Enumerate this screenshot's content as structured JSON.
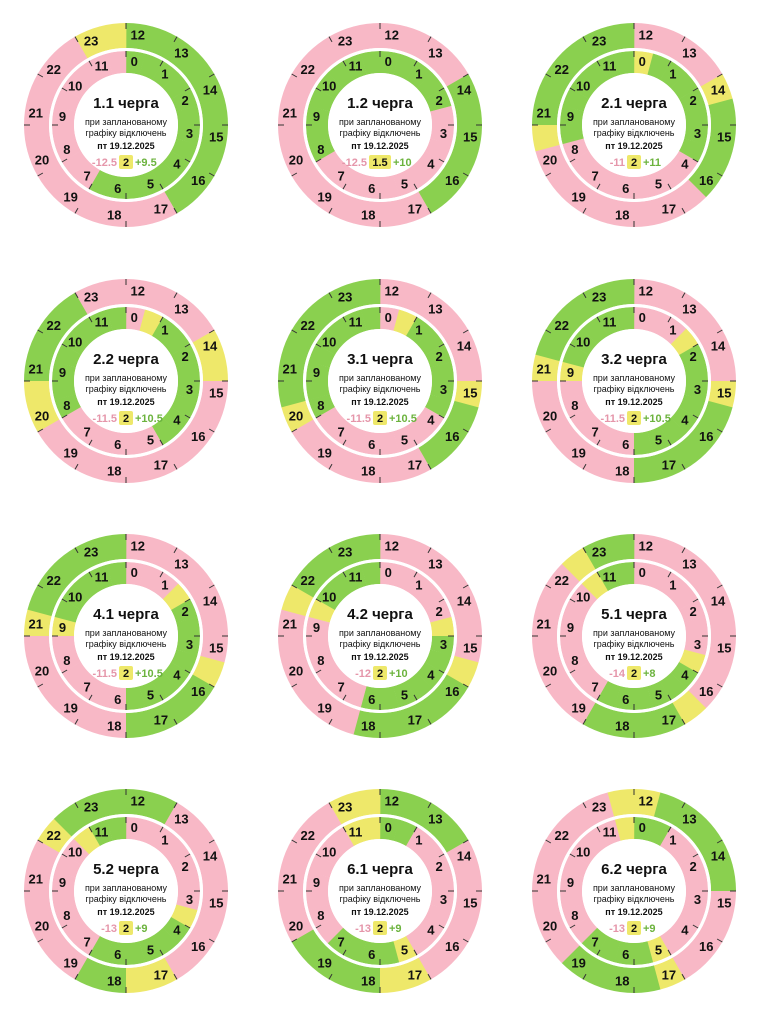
{
  "page": {
    "subtitle_line1": "при запланованому",
    "subtitle_line2": "графіку відключень",
    "date": "пт 19.12.2025"
  },
  "legend_colors": {
    "on": "#8ad04f",
    "off": "#f8b8c6",
    "maybe": "#eee86a"
  },
  "chart_data": {
    "type": "radial-schedule",
    "note_states": "on = power on (green), off = outage (pink), maybe = possible (yellow); outer ring = hours 12-23, inner ring = hours 0-11, two half-hour slots per hour",
    "queues": [
      {
        "title": "1.1 черга",
        "minus": "-12.5",
        "mid": "2",
        "plus": "+9.5",
        "inner": [
          "on",
          "on",
          "on",
          "on",
          "on",
          "on",
          "on",
          "on",
          "on",
          "on",
          "on",
          "on",
          "on",
          "on",
          "off",
          "off",
          "off",
          "off",
          "off",
          "off",
          "off",
          "off",
          "off",
          "off"
        ],
        "outer": [
          "on",
          "on",
          "on",
          "on",
          "on",
          "on",
          "on",
          "on",
          "on",
          "on",
          "off",
          "off",
          "off",
          "off",
          "off",
          "off",
          "off",
          "off",
          "off",
          "off",
          "off",
          "off",
          "maybe",
          "maybe"
        ]
      },
      {
        "title": "1.2 черга",
        "minus": "-12.5",
        "mid": "1.5",
        "plus": "+10",
        "inner": [
          "on",
          "on",
          "on",
          "on",
          "on",
          "off",
          "off",
          "off",
          "off",
          "off",
          "off",
          "off",
          "off",
          "off",
          "off",
          "off",
          "on",
          "on",
          "on",
          "on",
          "on",
          "on",
          "on",
          "on"
        ],
        "outer": [
          "off",
          "off",
          "off",
          "off",
          "on",
          "on",
          "on",
          "on",
          "on",
          "on",
          "off",
          "off",
          "off",
          "off",
          "off",
          "off",
          "off",
          "off",
          "off",
          "off",
          "off",
          "off",
          "off",
          "off"
        ]
      },
      {
        "title": "2.1 черга",
        "minus": "-11",
        "mid": "2",
        "plus": "+11",
        "inner": [
          "maybe",
          "on",
          "on",
          "on",
          "on",
          "on",
          "on",
          "on",
          "off",
          "off",
          "off",
          "off",
          "off",
          "off",
          "off",
          "off",
          "off",
          "on",
          "on",
          "on",
          "on",
          "on",
          "on",
          "on"
        ],
        "outer": [
          "off",
          "off",
          "off",
          "off",
          "maybe",
          "on",
          "on",
          "on",
          "on",
          "off",
          "off",
          "off",
          "off",
          "off",
          "off",
          "off",
          "off",
          "maybe",
          "on",
          "on",
          "on",
          "on",
          "on",
          "on"
        ]
      },
      {
        "title": "2.2 черга",
        "minus": "-11.5",
        "mid": "2",
        "plus": "+10.5",
        "inner": [
          "off",
          "maybe",
          "on",
          "on",
          "on",
          "on",
          "on",
          "on",
          "on",
          "on",
          "off",
          "off",
          "off",
          "off",
          "off",
          "off",
          "on",
          "on",
          "on",
          "on",
          "on",
          "on",
          "on",
          "on"
        ],
        "outer": [
          "off",
          "off",
          "off",
          "off",
          "maybe",
          "maybe",
          "off",
          "off",
          "off",
          "off",
          "off",
          "off",
          "off",
          "off",
          "off",
          "off",
          "maybe",
          "maybe",
          "on",
          "on",
          "on",
          "on",
          "off",
          "off"
        ]
      },
      {
        "title": "3.1 черга",
        "minus": "-11.5",
        "mid": "2",
        "plus": "+10.5",
        "inner": [
          "off",
          "maybe",
          "on",
          "on",
          "on",
          "on",
          "on",
          "on",
          "off",
          "off",
          "off",
          "off",
          "off",
          "off",
          "off",
          "off",
          "on",
          "on",
          "on",
          "on",
          "on",
          "on",
          "on",
          "on"
        ],
        "outer": [
          "off",
          "off",
          "off",
          "off",
          "off",
          "off",
          "maybe",
          "on",
          "on",
          "on",
          "off",
          "off",
          "off",
          "off",
          "off",
          "off",
          "maybe",
          "on",
          "on",
          "on",
          "on",
          "on",
          "on",
          "on"
        ]
      },
      {
        "title": "3.2 черга",
        "minus": "-11.5",
        "mid": "2",
        "plus": "+10.5",
        "inner": [
          "off",
          "off",
          "off",
          "maybe",
          "on",
          "on",
          "on",
          "on",
          "on",
          "on",
          "on",
          "on",
          "off",
          "off",
          "off",
          "off",
          "off",
          "off",
          "maybe",
          "on",
          "on",
          "on",
          "on",
          "on"
        ],
        "outer": [
          "off",
          "off",
          "off",
          "off",
          "off",
          "off",
          "maybe",
          "on",
          "on",
          "on",
          "on",
          "on",
          "off",
          "off",
          "off",
          "off",
          "off",
          "off",
          "maybe",
          "on",
          "on",
          "on",
          "on",
          "on"
        ]
      },
      {
        "title": "4.1 черга",
        "minus": "-11.5",
        "mid": "2",
        "plus": "+10.5",
        "inner": [
          "off",
          "off",
          "off",
          "maybe",
          "on",
          "on",
          "on",
          "on",
          "on",
          "on",
          "on",
          "on",
          "off",
          "off",
          "off",
          "off",
          "off",
          "off",
          "maybe",
          "on",
          "on",
          "on",
          "on",
          "on"
        ],
        "outer": [
          "off",
          "off",
          "off",
          "off",
          "off",
          "off",
          "off",
          "maybe",
          "on",
          "on",
          "on",
          "on",
          "off",
          "off",
          "off",
          "off",
          "off",
          "off",
          "maybe",
          "on",
          "on",
          "on",
          "on",
          "on"
        ]
      },
      {
        "title": "4.2 черга",
        "minus": "-12",
        "mid": "2",
        "plus": "+10",
        "inner": [
          "off",
          "off",
          "off",
          "off",
          "off",
          "maybe",
          "on",
          "on",
          "on",
          "on",
          "on",
          "on",
          "on",
          "off",
          "off",
          "off",
          "off",
          "off",
          "off",
          "maybe",
          "on",
          "on",
          "on",
          "on"
        ],
        "outer": [
          "off",
          "off",
          "off",
          "off",
          "off",
          "off",
          "off",
          "maybe",
          "on",
          "on",
          "on",
          "on",
          "on",
          "off",
          "off",
          "off",
          "off",
          "off",
          "off",
          "maybe",
          "on",
          "on",
          "on",
          "on"
        ]
      },
      {
        "title": "5.1 черга",
        "minus": "-14",
        "mid": "2",
        "plus": "+8",
        "inner": [
          "off",
          "off",
          "off",
          "off",
          "off",
          "off",
          "off",
          "maybe",
          "on",
          "on",
          "on",
          "on",
          "on",
          "on",
          "off",
          "off",
          "off",
          "off",
          "off",
          "off",
          "off",
          "maybe",
          "on",
          "on"
        ],
        "outer": [
          "off",
          "off",
          "off",
          "off",
          "off",
          "off",
          "off",
          "off",
          "off",
          "maybe",
          "on",
          "on",
          "on",
          "on",
          "off",
          "off",
          "off",
          "off",
          "off",
          "off",
          "off",
          "maybe",
          "on",
          "on"
        ]
      },
      {
        "title": "5.2 черга",
        "minus": "-13",
        "mid": "2",
        "plus": "+9",
        "inner": [
          "off",
          "off",
          "off",
          "off",
          "off",
          "off",
          "off",
          "maybe",
          "on",
          "on",
          "on",
          "on",
          "on",
          "on",
          "off",
          "off",
          "off",
          "off",
          "off",
          "off",
          "off",
          "maybe",
          "on",
          "on"
        ],
        "outer": [
          "on",
          "on",
          "off",
          "off",
          "off",
          "off",
          "off",
          "off",
          "off",
          "off",
          "maybe",
          "maybe",
          "on",
          "on",
          "off",
          "off",
          "off",
          "off",
          "off",
          "off",
          "maybe",
          "on",
          "on",
          "on"
        ]
      },
      {
        "title": "6.1 черга",
        "minus": "-13",
        "mid": "2",
        "plus": "+9",
        "inner": [
          "on",
          "on",
          "off",
          "off",
          "off",
          "off",
          "off",
          "off",
          "off",
          "off",
          "maybe",
          "on",
          "on",
          "on",
          "on",
          "off",
          "off",
          "off",
          "off",
          "off",
          "off",
          "off",
          "maybe",
          "maybe"
        ],
        "outer": [
          "on",
          "on",
          "on",
          "on",
          "off",
          "off",
          "off",
          "off",
          "off",
          "off",
          "maybe",
          "maybe",
          "on",
          "on",
          "on",
          "on",
          "off",
          "off",
          "off",
          "off",
          "off",
          "off",
          "maybe",
          "maybe"
        ]
      },
      {
        "title": "6.2 черга",
        "minus": "-13",
        "mid": "2",
        "plus": "+9",
        "inner": [
          "on",
          "on",
          "off",
          "off",
          "off",
          "off",
          "off",
          "off",
          "off",
          "off",
          "maybe",
          "on",
          "on",
          "on",
          "on",
          "off",
          "off",
          "off",
          "off",
          "off",
          "off",
          "off",
          "off",
          "maybe"
        ],
        "outer": [
          "maybe",
          "on",
          "on",
          "on",
          "on",
          "on",
          "off",
          "off",
          "off",
          "off",
          "maybe",
          "on",
          "on",
          "on",
          "on",
          "off",
          "off",
          "off",
          "off",
          "off",
          "off",
          "off",
          "off",
          "maybe"
        ]
      }
    ]
  }
}
